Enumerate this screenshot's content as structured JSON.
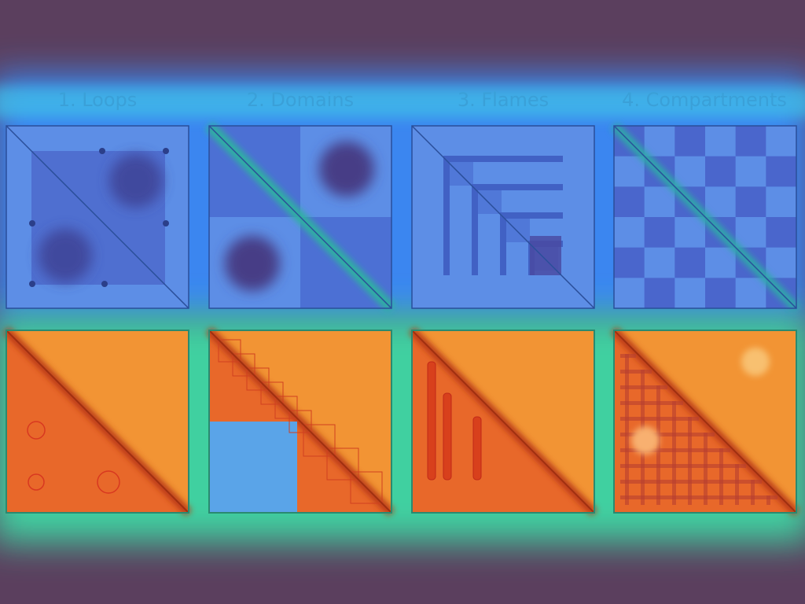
{
  "panels": [
    {
      "title": "1. Loops"
    },
    {
      "title": "2. Domains"
    },
    {
      "title": "3. Flames"
    },
    {
      "title": "4. Compartments"
    }
  ]
}
